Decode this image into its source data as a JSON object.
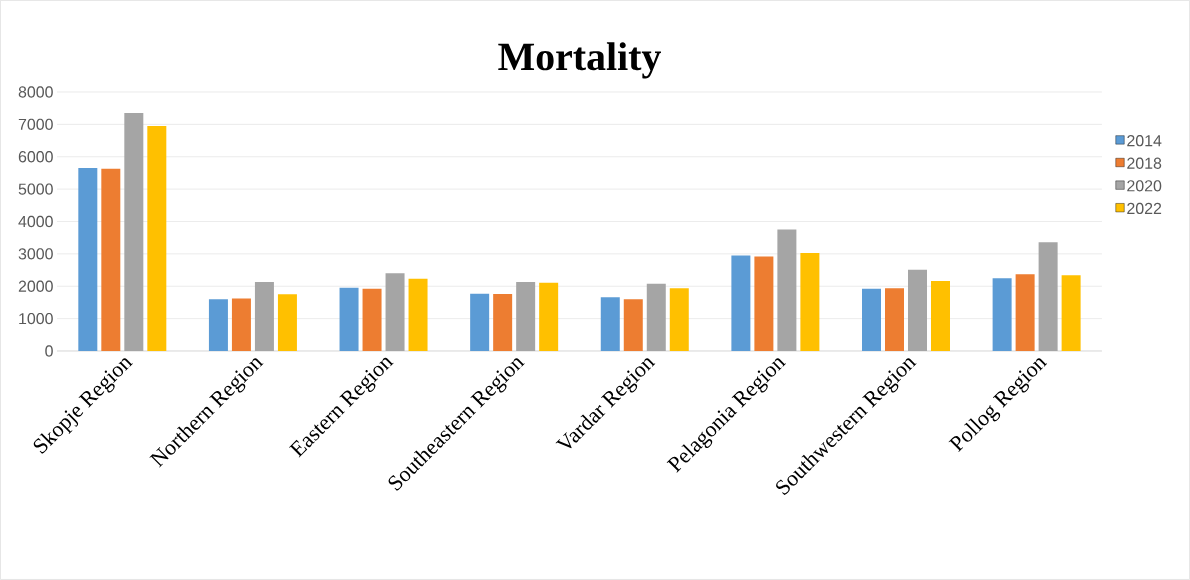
{
  "chart_data": {
    "type": "bar",
    "title": "Mortality",
    "categories": [
      "Skopje Region",
      "Northern Region",
      "Eastern Region",
      "Southeastern Region",
      "Vardar Region",
      "Pelagonia Region",
      "Southwestern Region",
      "Pollog Region"
    ],
    "series": [
      {
        "name": "2014",
        "color": "#5b9bd5",
        "values": [
          5650,
          1600,
          1950,
          1770,
          1660,
          2950,
          1920,
          2250
        ]
      },
      {
        "name": "2018",
        "color": "#ed7d31",
        "values": [
          5630,
          1620,
          1920,
          1760,
          1600,
          2920,
          1940,
          2370
        ]
      },
      {
        "name": "2020",
        "color": "#a5a5a5",
        "values": [
          7350,
          2130,
          2400,
          2130,
          2080,
          3750,
          2510,
          3360
        ]
      },
      {
        "name": "2022",
        "color": "#ffc000",
        "values": [
          6950,
          1750,
          2230,
          2110,
          1940,
          3030,
          2160,
          2340
        ]
      }
    ],
    "ylim": [
      0,
      8000
    ],
    "yticks": [
      0,
      1000,
      2000,
      3000,
      4000,
      5000,
      6000,
      7000,
      8000
    ],
    "grid": "y",
    "legend": "right"
  }
}
